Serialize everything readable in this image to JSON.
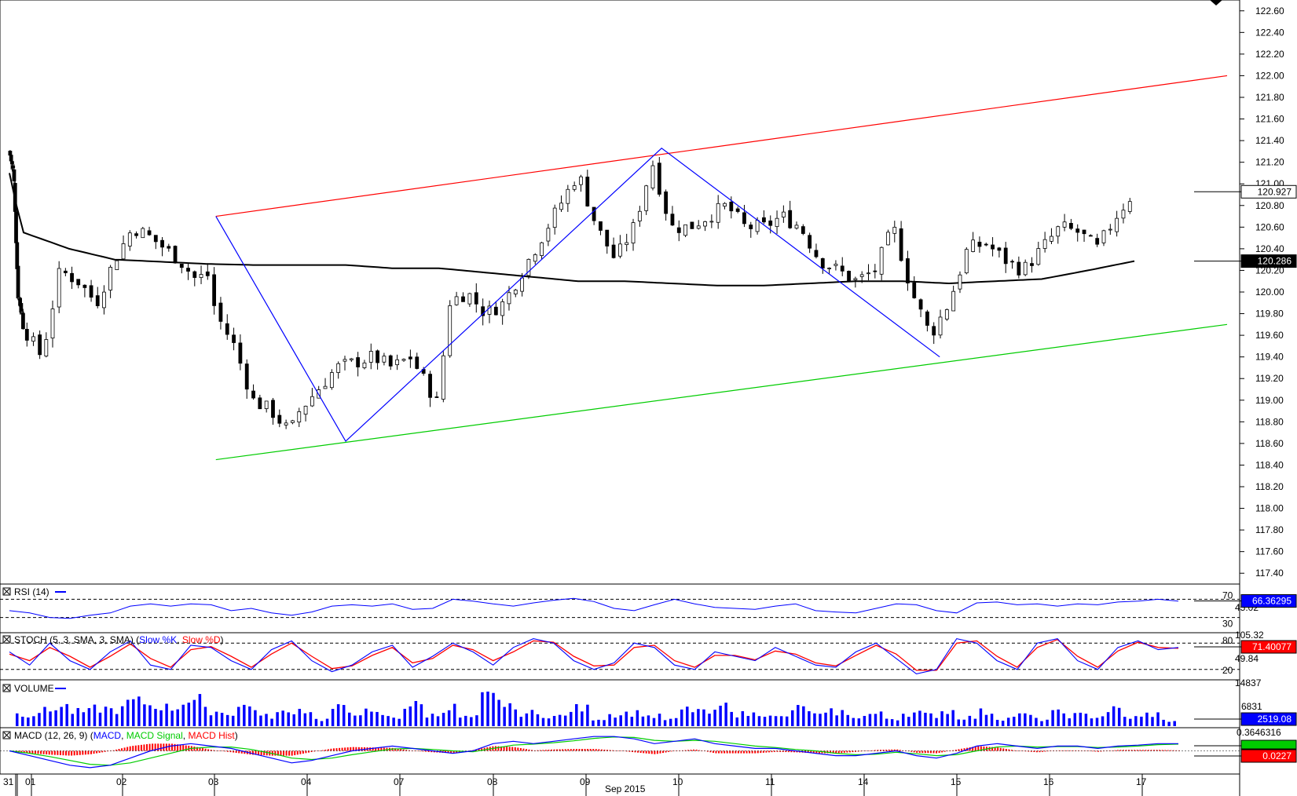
{
  "colors": {
    "background": "#ffffff",
    "up_candle": "#ffffff",
    "down_candle": "#000000",
    "channel_upper": "#ff0000",
    "channel_lower": "#00cc00",
    "zigzag": "#0000ff",
    "moving_average": "#000000",
    "rsi_line": "#0000ff",
    "stoch_k": "#0000ff",
    "stoch_d": "#ff0000",
    "volume_bars": "#0000ff",
    "macd": "#0000ff",
    "macd_signal": "#00cc00",
    "macd_hist": "#ff0000",
    "macd_label_green": "#00cc00",
    "macd_label_red": "#ff0000"
  },
  "x_axis": {
    "ticks": [
      "31",
      "01",
      "02",
      "03",
      "04",
      "07",
      "08",
      "09",
      "10",
      "11",
      "14",
      "15",
      "16",
      "17"
    ],
    "month_label": "Sep 2015"
  },
  "chart_data": [
    {
      "type": "candlestick",
      "panel": "price",
      "ylim": [
        117.3,
        122.7
      ],
      "yticks": [
        "122.60",
        "122.40",
        "122.20",
        "122.00",
        "121.80",
        "121.60",
        "121.40",
        "121.20",
        "121.00",
        "120.80",
        "120.60",
        "120.40",
        "120.20",
        "120.00",
        "119.80",
        "119.60",
        "119.40",
        "119.20",
        "119.00",
        "118.80",
        "118.60",
        "118.40",
        "118.20",
        "118.00",
        "117.80",
        "117.60",
        "117.40"
      ],
      "last_price_label": "120.927",
      "last_price": 120.927,
      "ma_label": "120.286",
      "ma_value": 120.286,
      "upper_channel": [
        [
          3.1,
          120.7
        ],
        [
          14.0,
          122.0
        ]
      ],
      "lower_channel": [
        [
          3.1,
          118.45
        ],
        [
          14.0,
          119.7
        ]
      ],
      "zigzag": [
        [
          3.1,
          120.7
        ],
        [
          4.5,
          118.62
        ],
        [
          7.9,
          121.33
        ],
        [
          10.9,
          119.4
        ]
      ],
      "close_path": [
        [
          0,
          121.3
        ],
        [
          0.3,
          121.1
        ],
        [
          0.4,
          120.8
        ],
        [
          0.6,
          120.0
        ],
        [
          0.9,
          119.8
        ],
        [
          1.2,
          119.4
        ],
        [
          1.4,
          120.2
        ],
        [
          1.6,
          120.1
        ],
        [
          1.8,
          119.9
        ],
        [
          2.0,
          120.3
        ],
        [
          2.2,
          120.6
        ],
        [
          2.4,
          120.5
        ],
        [
          2.7,
          120.3
        ],
        [
          2.9,
          120.1
        ],
        [
          3.0,
          120.2
        ],
        [
          3.1,
          119.8
        ],
        [
          3.3,
          119.5
        ],
        [
          3.5,
          119.0
        ],
        [
          3.7,
          118.9
        ],
        [
          3.9,
          118.7
        ],
        [
          4.0,
          118.9
        ],
        [
          4.2,
          119.1
        ],
        [
          4.4,
          119.3
        ],
        [
          4.6,
          119.35
        ],
        [
          4.8,
          119.4
        ],
        [
          5.0,
          119.3
        ],
        [
          5.2,
          119.4
        ],
        [
          5.4,
          119.1
        ],
        [
          5.5,
          118.95
        ],
        [
          5.6,
          119.9
        ],
        [
          5.8,
          120.0
        ],
        [
          6.0,
          119.8
        ],
        [
          6.2,
          119.9
        ],
        [
          6.4,
          120.2
        ],
        [
          6.6,
          120.5
        ],
        [
          6.8,
          120.8
        ],
        [
          7.0,
          121.1
        ],
        [
          7.2,
          120.6
        ],
        [
          7.4,
          120.3
        ],
        [
          7.6,
          120.6
        ],
        [
          7.8,
          121.2
        ],
        [
          8.0,
          120.6
        ],
        [
          8.2,
          120.6
        ],
        [
          8.4,
          120.7
        ],
        [
          8.6,
          120.8
        ],
        [
          8.8,
          120.6
        ],
        [
          9.0,
          120.6
        ],
        [
          9.2,
          120.7
        ],
        [
          9.4,
          120.6
        ],
        [
          9.6,
          120.3
        ],
        [
          9.8,
          120.2
        ],
        [
          10.0,
          120.1
        ],
        [
          10.2,
          120.2
        ],
        [
          10.4,
          120.6
        ],
        [
          10.6,
          120.0
        ],
        [
          10.8,
          119.6
        ],
        [
          11.0,
          119.9
        ],
        [
          11.2,
          120.4
        ],
        [
          11.4,
          120.45
        ],
        [
          11.6,
          120.3
        ],
        [
          11.8,
          120.2
        ],
        [
          12.0,
          120.4
        ],
        [
          12.2,
          120.6
        ],
        [
          12.4,
          120.55
        ],
        [
          12.6,
          120.4
        ],
        [
          12.8,
          120.7
        ],
        [
          13.0,
          120.93
        ]
      ],
      "ma_path": [
        [
          0,
          121.1
        ],
        [
          0.5,
          120.8
        ],
        [
          1.0,
          120.55
        ],
        [
          1.5,
          120.4
        ],
        [
          2.0,
          120.3
        ],
        [
          2.5,
          120.28
        ],
        [
          3.0,
          120.26
        ],
        [
          3.5,
          120.25
        ],
        [
          4.0,
          120.25
        ],
        [
          4.5,
          120.25
        ],
        [
          5.0,
          120.22
        ],
        [
          5.5,
          120.22
        ],
        [
          6.0,
          120.18
        ],
        [
          6.5,
          120.14
        ],
        [
          7.0,
          120.1
        ],
        [
          7.5,
          120.1
        ],
        [
          8.0,
          120.08
        ],
        [
          8.5,
          120.06
        ],
        [
          9.0,
          120.06
        ],
        [
          9.5,
          120.08
        ],
        [
          10.0,
          120.1
        ],
        [
          10.5,
          120.1
        ],
        [
          11.0,
          120.08
        ],
        [
          11.5,
          120.1
        ],
        [
          12.0,
          120.12
        ],
        [
          12.5,
          120.2
        ],
        [
          13.0,
          120.286
        ]
      ]
    },
    {
      "type": "line",
      "panel": "rsi",
      "title": "RSI (14)",
      "ylim": [
        0,
        100
      ],
      "levels": [
        "70",
        "30"
      ],
      "level_values": [
        70,
        30
      ],
      "right_labels": [
        "70",
        "45.02",
        "30"
      ],
      "last_value_label": "66.36295",
      "series": [
        {
          "values": [
            45,
            40,
            30,
            28,
            35,
            40,
            55,
            60,
            55,
            60,
            58,
            45,
            50,
            40,
            35,
            42,
            55,
            58,
            55,
            60,
            48,
            50,
            70,
            66,
            60,
            55,
            62,
            68,
            72,
            65,
            50,
            45,
            58,
            70,
            60,
            52,
            50,
            48,
            55,
            60,
            45,
            42,
            40,
            50,
            60,
            58,
            45,
            40,
            62,
            64,
            58,
            60,
            55,
            60,
            58,
            64,
            66,
            70,
            66
          ]
        }
      ]
    },
    {
      "type": "line",
      "panel": "stoch",
      "title": "STOCH (5, 3, SMA, 3, SMA)",
      "ylim": [
        0,
        100
      ],
      "levels": [
        "80",
        "20"
      ],
      "level_values": [
        80,
        20
      ],
      "right_labels": [
        "105.32",
        "80",
        "49.84",
        "20"
      ],
      "last_value_label": "71.40077",
      "series": [
        {
          "name": "Slow %K",
          "values": [
            60,
            30,
            80,
            40,
            20,
            60,
            85,
            30,
            20,
            75,
            70,
            40,
            20,
            65,
            85,
            40,
            15,
            30,
            60,
            75,
            25,
            50,
            80,
            60,
            30,
            70,
            90,
            80,
            40,
            20,
            35,
            80,
            70,
            30,
            20,
            60,
            50,
            40,
            70,
            50,
            30,
            25,
            60,
            80,
            45,
            10,
            20,
            90,
            80,
            40,
            20,
            80,
            90,
            40,
            20,
            70,
            85,
            65,
            70
          ]
        },
        {
          "name": "Slow %D",
          "values": [
            55,
            40,
            70,
            50,
            25,
            50,
            78,
            45,
            25,
            65,
            72,
            50,
            25,
            55,
            80,
            50,
            22,
            28,
            52,
            70,
            35,
            45,
            75,
            65,
            40,
            60,
            85,
            82,
            50,
            28,
            30,
            70,
            75,
            40,
            25,
            52,
            52,
            42,
            62,
            55,
            35,
            28,
            52,
            75,
            55,
            18,
            18,
            80,
            85,
            50,
            25,
            70,
            88,
            50,
            25,
            62,
            82,
            70,
            68
          ]
        }
      ]
    },
    {
      "type": "bar",
      "panel": "volume",
      "title": "VOLUME",
      "right_labels": [
        "14837",
        "6831"
      ],
      "last_value_label": "2519.08",
      "ylim": [
        0,
        16000
      ],
      "values": [
        5500,
        7000,
        9000,
        6500,
        8000,
        7500,
        11000,
        9500,
        8500,
        12000,
        7000,
        6000,
        9000,
        4500,
        6000,
        7500,
        3000,
        8000,
        6500,
        5500,
        4000,
        9500,
        5000,
        8500,
        4000,
        13000,
        10500,
        6000,
        5000,
        4500,
        8000,
        3500,
        5500,
        6000,
        4500,
        3000,
        7500,
        6000,
        9000,
        5500,
        6000,
        4000,
        8000,
        5000,
        6500,
        4500,
        5500,
        3500,
        6000,
        5000,
        7000,
        4000,
        6500,
        3500,
        5000,
        3000,
        6000,
        5000,
        4500,
        7500,
        4000,
        5500,
        2519
      ]
    },
    {
      "type": "line",
      "panel": "macd",
      "title": "MACD (12, 26, 9)",
      "right_labels": [
        "0.3646316"
      ],
      "last_value_label": "0.0227",
      "ylim": [
        -0.45,
        0.45
      ],
      "series": [
        {
          "name": "MACD",
          "values": [
            0.0,
            -0.1,
            -0.2,
            -0.3,
            -0.35,
            -0.3,
            -0.15,
            0.0,
            0.1,
            0.15,
            0.1,
            0.05,
            -0.05,
            -0.15,
            -0.25,
            -0.2,
            -0.1,
            0.0,
            0.05,
            0.1,
            0.05,
            0.0,
            -0.05,
            0.0,
            0.15,
            0.2,
            0.15,
            0.2,
            0.25,
            0.3,
            0.3,
            0.25,
            0.15,
            0.2,
            0.25,
            0.15,
            0.1,
            0.05,
            0.05,
            0.0,
            -0.05,
            -0.1,
            -0.1,
            -0.05,
            0.0,
            -0.1,
            -0.15,
            -0.05,
            0.1,
            0.15,
            0.1,
            0.05,
            0.1,
            0.1,
            0.05,
            0.1,
            0.12,
            0.15,
            0.15
          ]
        },
        {
          "name": "MACD Signal",
          "values": [
            0.0,
            -0.05,
            -0.12,
            -0.2,
            -0.28,
            -0.3,
            -0.25,
            -0.15,
            -0.05,
            0.05,
            0.08,
            0.08,
            0.03,
            -0.05,
            -0.15,
            -0.18,
            -0.15,
            -0.08,
            -0.02,
            0.04,
            0.05,
            0.03,
            0.0,
            -0.02,
            0.05,
            0.12,
            0.14,
            0.17,
            0.21,
            0.26,
            0.29,
            0.28,
            0.22,
            0.2,
            0.22,
            0.2,
            0.15,
            0.1,
            0.07,
            0.03,
            0.0,
            -0.05,
            -0.08,
            -0.07,
            -0.03,
            -0.06,
            -0.1,
            -0.08,
            0.0,
            0.08,
            0.1,
            0.08,
            0.09,
            0.09,
            0.07,
            0.08,
            0.1,
            0.13,
            0.14
          ]
        },
        {
          "name": "MACD Hist",
          "values": [
            0.0,
            -0.05,
            -0.08,
            -0.1,
            -0.07,
            0.0,
            0.1,
            0.15,
            0.15,
            0.1,
            0.02,
            -0.03,
            -0.08,
            -0.1,
            -0.1,
            -0.02,
            0.05,
            0.08,
            0.07,
            0.06,
            0.0,
            -0.03,
            -0.05,
            0.02,
            0.1,
            0.08,
            0.01,
            0.03,
            0.04,
            0.04,
            0.01,
            -0.03,
            -0.07,
            0.0,
            0.03,
            -0.05,
            -0.05,
            -0.05,
            -0.02,
            -0.03,
            -0.05,
            -0.05,
            -0.02,
            0.02,
            0.03,
            -0.04,
            -0.05,
            0.03,
            0.1,
            0.07,
            0.0,
            -0.03,
            0.01,
            0.01,
            -0.02,
            0.02,
            0.02,
            0.02,
            0.01
          ]
        }
      ]
    }
  ]
}
